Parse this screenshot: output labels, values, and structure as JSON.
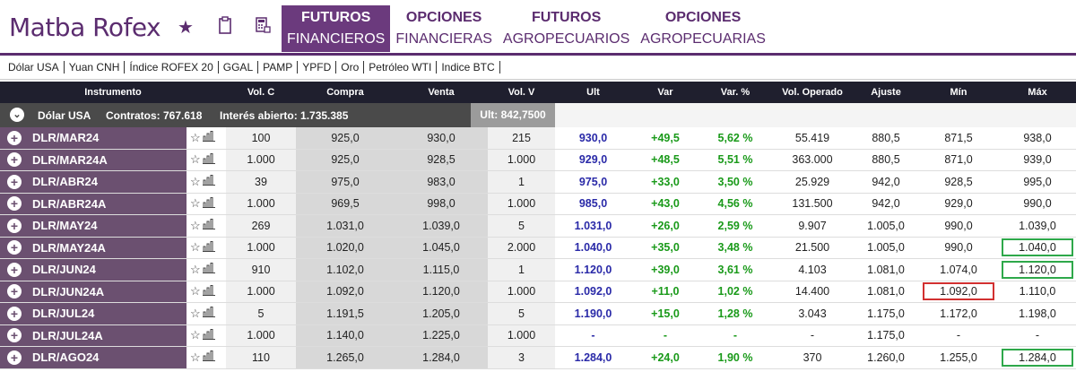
{
  "brand": {
    "logo": "Matba Rofex"
  },
  "nav": [
    {
      "l1": "FUTUROS",
      "l2": "FINANCIEROS",
      "active": true
    },
    {
      "l1": "OPCIONES",
      "l2": "FINANCIERAS",
      "active": false
    },
    {
      "l1": "FUTUROS",
      "l2": "AGROPECUARIOS",
      "active": false
    },
    {
      "l1": "OPCIONES",
      "l2": "AGROPECUARIAS",
      "active": false
    }
  ],
  "subnav": [
    "Dólar USA",
    "Yuan CNH",
    "Índice ROFEX 20",
    "GGAL",
    "PAMP",
    "YPFD",
    "Oro",
    "Petróleo WTI",
    "Indice BTC"
  ],
  "columns": {
    "instrumento": "Instrumento",
    "volc": "Vol. C",
    "compra": "Compra",
    "venta": "Venta",
    "volv": "Vol. V",
    "ult": "Ult",
    "var": "Var",
    "varp": "Var. %",
    "volop": "Vol. Operado",
    "ajuste": "Ajuste",
    "min": "Mín",
    "max": "Máx"
  },
  "group": {
    "name": "Dólar USA",
    "contratos": "Contratos: 767.618",
    "interes": "Interés abierto: 1.735.385",
    "ult": "Ult: 842,7500"
  },
  "rows": [
    {
      "name": "DLR/MAR24",
      "volc": "100",
      "compra": "925,0",
      "venta": "930,0",
      "volv": "215",
      "ult": "930,0",
      "var": "+49,5",
      "varp": "5,62 %",
      "volop": "55.419",
      "ajuste": "880,5",
      "min": "871,5",
      "max": "938,0",
      "minBox": "",
      "maxBox": ""
    },
    {
      "name": "DLR/MAR24A",
      "volc": "1.000",
      "compra": "925,0",
      "venta": "928,5",
      "volv": "1.000",
      "ult": "929,0",
      "var": "+48,5",
      "varp": "5,51 %",
      "volop": "363.000",
      "ajuste": "880,5",
      "min": "871,0",
      "max": "939,0",
      "minBox": "",
      "maxBox": ""
    },
    {
      "name": "DLR/ABR24",
      "volc": "39",
      "compra": "975,0",
      "venta": "983,0",
      "volv": "1",
      "ult": "975,0",
      "var": "+33,0",
      "varp": "3,50 %",
      "volop": "25.929",
      "ajuste": "942,0",
      "min": "928,5",
      "max": "995,0",
      "minBox": "",
      "maxBox": ""
    },
    {
      "name": "DLR/ABR24A",
      "volc": "1.000",
      "compra": "969,5",
      "venta": "998,0",
      "volv": "1.000",
      "ult": "985,0",
      "var": "+43,0",
      "varp": "4,56 %",
      "volop": "131.500",
      "ajuste": "942,0",
      "min": "929,0",
      "max": "990,0",
      "minBox": "",
      "maxBox": ""
    },
    {
      "name": "DLR/MAY24",
      "volc": "269",
      "compra": "1.031,0",
      "venta": "1.039,0",
      "volv": "5",
      "ult": "1.031,0",
      "var": "+26,0",
      "varp": "2,59 %",
      "volop": "9.907",
      "ajuste": "1.005,0",
      "min": "990,0",
      "max": "1.039,0",
      "minBox": "",
      "maxBox": ""
    },
    {
      "name": "DLR/MAY24A",
      "volc": "1.000",
      "compra": "1.020,0",
      "venta": "1.045,0",
      "volv": "2.000",
      "ult": "1.040,0",
      "var": "+35,0",
      "varp": "3,48 %",
      "volop": "21.500",
      "ajuste": "1.005,0",
      "min": "990,0",
      "max": "1.040,0",
      "minBox": "",
      "maxBox": "g"
    },
    {
      "name": "DLR/JUN24",
      "volc": "910",
      "compra": "1.102,0",
      "venta": "1.115,0",
      "volv": "1",
      "ult": "1.120,0",
      "var": "+39,0",
      "varp": "3,61 %",
      "volop": "4.103",
      "ajuste": "1.081,0",
      "min": "1.074,0",
      "max": "1.120,0",
      "minBox": "",
      "maxBox": "g"
    },
    {
      "name": "DLR/JUN24A",
      "volc": "1.000",
      "compra": "1.092,0",
      "venta": "1.120,0",
      "volv": "1.000",
      "ult": "1.092,0",
      "var": "+11,0",
      "varp": "1,02 %",
      "volop": "14.400",
      "ajuste": "1.081,0",
      "min": "1.092,0",
      "max": "1.110,0",
      "minBox": "r",
      "maxBox": ""
    },
    {
      "name": "DLR/JUL24",
      "volc": "5",
      "compra": "1.191,5",
      "venta": "1.205,0",
      "volv": "5",
      "ult": "1.190,0",
      "var": "+15,0",
      "varp": "1,28 %",
      "volop": "3.043",
      "ajuste": "1.175,0",
      "min": "1.172,0",
      "max": "1.198,0",
      "minBox": "",
      "maxBox": ""
    },
    {
      "name": "DLR/JUL24A",
      "volc": "1.000",
      "compra": "1.140,0",
      "venta": "1.225,0",
      "volv": "1.000",
      "ult": "-",
      "var": "-",
      "varp": "-",
      "volop": "-",
      "ajuste": "1.175,0",
      "min": "-",
      "max": "-",
      "minBox": "",
      "maxBox": ""
    },
    {
      "name": "DLR/AGO24",
      "volc": "110",
      "compra": "1.265,0",
      "venta": "1.284,0",
      "volv": "3",
      "ult": "1.284,0",
      "var": "+24,0",
      "varp": "1,90 %",
      "volop": "370",
      "ajuste": "1.260,0",
      "min": "1.255,0",
      "max": "1.284,0",
      "minBox": "",
      "maxBox": "g"
    }
  ]
}
